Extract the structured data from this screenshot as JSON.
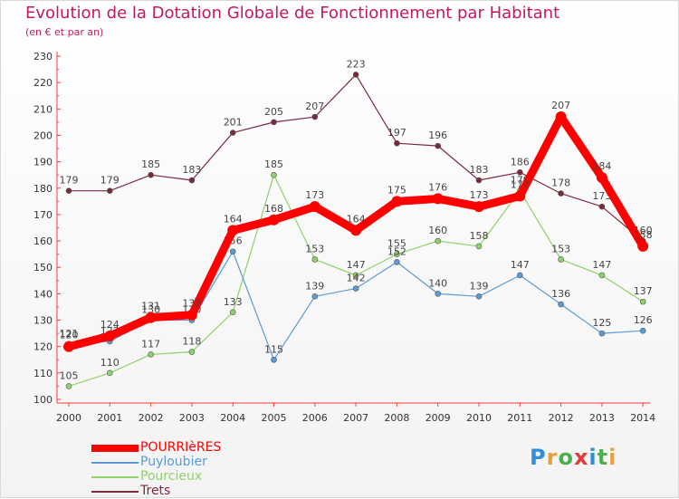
{
  "title": "Evolution de la Dotation Globale de Fonctionnement par Habitant",
  "subtitle": "(en € et par an)",
  "logo": {
    "text": "Proxiti"
  },
  "chart_data": {
    "type": "line",
    "categories": [
      "2000",
      "2001",
      "2002",
      "2003",
      "2004",
      "2005",
      "2006",
      "2007",
      "2008",
      "2009",
      "2010",
      "2011",
      "2012",
      "2013",
      "2014"
    ],
    "ylim": [
      100,
      230
    ],
    "yticks": [
      "100",
      "110",
      "120",
      "130",
      "140",
      "150",
      "160",
      "170",
      "180",
      "190",
      "200",
      "210",
      "220",
      "230"
    ],
    "grid": false,
    "legend": "bottom-left",
    "series": [
      {
        "name": "Trets",
        "color": "#7a2b3b",
        "values": [
          179,
          179,
          185,
          183,
          201,
          205,
          207,
          223,
          197,
          196,
          183,
          186,
          178,
          173,
          160
        ]
      },
      {
        "name": "Pourcieux",
        "color": "#8fd16b",
        "values": [
          105,
          110,
          117,
          118,
          133,
          185,
          153,
          147,
          155,
          160,
          158,
          179,
          153,
          147,
          137
        ]
      },
      {
        "name": "Puyloubier",
        "color": "#5b9bd5",
        "values": [
          121,
          122,
          130,
          130,
          156,
          115,
          139,
          142,
          152,
          140,
          139,
          147,
          136,
          125,
          126
        ]
      },
      {
        "name": "POURRIèRES",
        "color": "#ff0000",
        "values": [
          120,
          124,
          131,
          132,
          164,
          168,
          173,
          164,
          175,
          176,
          173,
          177,
          207,
          184,
          158
        ]
      }
    ],
    "legend_order": [
      "POURRIèRES",
      "Puyloubier",
      "Pourcieux",
      "Trets"
    ]
  }
}
